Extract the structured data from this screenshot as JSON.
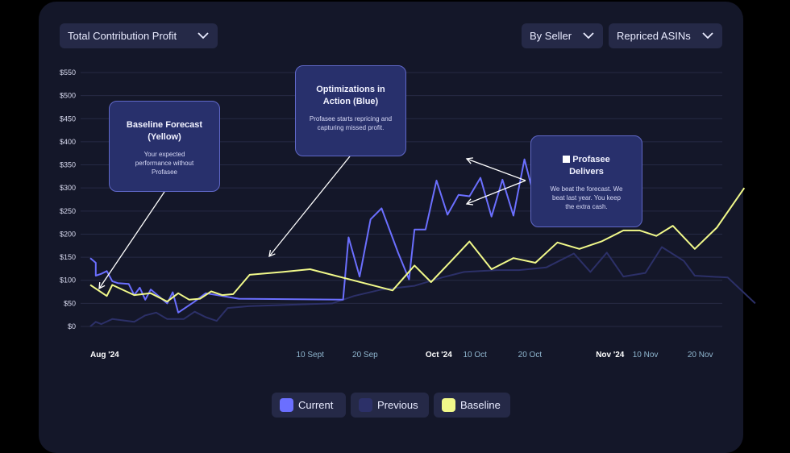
{
  "controls": {
    "metric_dropdown": "Total Contribution Profit",
    "group_dropdown": "By Seller",
    "filter_dropdown": "Repriced ASINs"
  },
  "legend": {
    "current": "Current",
    "previous": "Previous",
    "baseline": "Baseline"
  },
  "callouts": {
    "baseline": {
      "title": "Baseline Forecast (Yellow)",
      "body": "Your expected performance without Profasee"
    },
    "optimizations": {
      "title": "Optimizations in Action (Blue)",
      "body": "Profasee starts repricing and capturing missed profit."
    },
    "delivers": {
      "title": "Profasee Delivers",
      "body": "We beat the forecast. We beat last year. You keep the extra cash."
    }
  },
  "colors": {
    "current": "#6b6fff",
    "previous": "#2c3068",
    "baseline": "#f1f98a",
    "card": "#141729",
    "button": "#252947",
    "grid": "#262a44"
  },
  "chart_data": {
    "type": "line",
    "ylim": [
      0,
      550
    ],
    "y_ticks": [
      "$0",
      "$50",
      "$100",
      "$150",
      "$200",
      "$250",
      "$300",
      "$350",
      "$400",
      "$450",
      "$500",
      "$550"
    ],
    "x_range": [
      "2024-08-01",
      "2024-11-24"
    ],
    "x_ticks": [
      {
        "date": "2024-08-01",
        "label": "Aug '24",
        "bold": true
      },
      {
        "date": "2024-09-10",
        "label": "10 Sept",
        "bold": false
      },
      {
        "date": "2024-09-20",
        "label": "20 Sep",
        "bold": false
      },
      {
        "date": "2024-10-01",
        "label": "Oct '24",
        "bold": true
      },
      {
        "date": "2024-10-10",
        "label": "10 Oct",
        "bold": false
      },
      {
        "date": "2024-10-20",
        "label": "20 Oct",
        "bold": false
      },
      {
        "date": "2024-11-01",
        "label": "Nov '24",
        "bold": true
      },
      {
        "date": "2024-11-10",
        "label": "10 Nov",
        "bold": false
      },
      {
        "date": "2024-11-20",
        "label": "20 Nov",
        "bold": false
      }
    ],
    "grid": true,
    "series": [
      {
        "name": "Current",
        "points": [
          [
            "2024-08-01",
            148
          ],
          [
            "2024-08-02",
            138
          ],
          [
            "2024-08-02",
            110
          ],
          [
            "2024-08-03",
            114
          ],
          [
            "2024-08-04",
            120
          ],
          [
            "2024-08-05",
            98
          ],
          [
            "2024-08-06",
            94
          ],
          [
            "2024-08-08",
            92
          ],
          [
            "2024-08-09",
            68
          ],
          [
            "2024-08-10",
            84
          ],
          [
            "2024-08-11",
            58
          ],
          [
            "2024-08-12",
            80
          ],
          [
            "2024-08-13",
            70
          ],
          [
            "2024-08-15",
            50
          ],
          [
            "2024-08-16",
            74
          ],
          [
            "2024-08-17",
            30
          ],
          [
            "2024-08-20",
            54
          ],
          [
            "2024-08-22",
            72
          ],
          [
            "2024-08-25",
            66
          ],
          [
            "2024-08-28",
            60
          ],
          [
            "2024-09-16",
            58
          ],
          [
            "2024-09-17",
            193
          ],
          [
            "2024-09-19",
            108
          ],
          [
            "2024-09-21",
            232
          ],
          [
            "2024-09-23",
            256
          ],
          [
            "2024-09-26",
            160
          ],
          [
            "2024-09-28",
            102
          ],
          [
            "2024-09-29",
            210
          ],
          [
            "2024-10-01",
            210
          ],
          [
            "2024-10-03",
            316
          ],
          [
            "2024-10-05",
            242
          ],
          [
            "2024-10-07",
            285
          ],
          [
            "2024-10-09",
            282
          ],
          [
            "2024-10-11",
            322
          ],
          [
            "2024-10-13",
            238
          ],
          [
            "2024-10-15",
            318
          ],
          [
            "2024-10-17",
            240
          ],
          [
            "2024-10-19",
            362
          ],
          [
            "2024-10-21",
            270
          ],
          [
            "2024-10-23",
            326
          ]
        ]
      },
      {
        "name": "Previous",
        "points": [
          [
            "2024-08-01",
            0
          ],
          [
            "2024-08-02",
            10
          ],
          [
            "2024-08-03",
            5
          ],
          [
            "2024-08-05",
            16
          ],
          [
            "2024-08-09",
            10
          ],
          [
            "2024-08-11",
            24
          ],
          [
            "2024-08-13",
            30
          ],
          [
            "2024-08-15",
            16
          ],
          [
            "2024-08-18",
            16
          ],
          [
            "2024-08-20",
            32
          ],
          [
            "2024-08-22",
            20
          ],
          [
            "2024-08-24",
            12
          ],
          [
            "2024-08-26",
            40
          ],
          [
            "2024-08-30",
            44
          ],
          [
            "2024-09-14",
            50
          ],
          [
            "2024-09-18",
            66
          ],
          [
            "2024-09-23",
            80
          ],
          [
            "2024-09-29",
            88
          ],
          [
            "2024-10-04",
            106
          ],
          [
            "2024-10-08",
            118
          ],
          [
            "2024-10-14",
            122
          ],
          [
            "2024-10-18",
            122
          ],
          [
            "2024-10-23",
            128
          ],
          [
            "2024-10-28",
            158
          ],
          [
            "2024-10-31",
            118
          ],
          [
            "2024-11-03",
            160
          ],
          [
            "2024-11-06",
            108
          ],
          [
            "2024-11-10",
            116
          ],
          [
            "2024-11-13",
            172
          ],
          [
            "2024-11-17",
            142
          ],
          [
            "2024-11-19",
            110
          ],
          [
            "2024-11-25",
            106
          ],
          [
            "2024-11-30",
            50
          ]
        ]
      },
      {
        "name": "Baseline",
        "points": [
          [
            "2024-08-01",
            90
          ],
          [
            "2024-08-04",
            66
          ],
          [
            "2024-08-05",
            90
          ],
          [
            "2024-08-09",
            68
          ],
          [
            "2024-08-12",
            72
          ],
          [
            "2024-08-15",
            54
          ],
          [
            "2024-08-17",
            72
          ],
          [
            "2024-08-19",
            58
          ],
          [
            "2024-08-21",
            60
          ],
          [
            "2024-08-23",
            76
          ],
          [
            "2024-08-25",
            68
          ],
          [
            "2024-08-27",
            70
          ],
          [
            "2024-08-30",
            112
          ],
          [
            "2024-09-05",
            118
          ],
          [
            "2024-09-10",
            124
          ],
          [
            "2024-09-25",
            78
          ],
          [
            "2024-09-29",
            132
          ],
          [
            "2024-10-02",
            96
          ],
          [
            "2024-10-06",
            146
          ],
          [
            "2024-10-09",
            184
          ],
          [
            "2024-10-13",
            124
          ],
          [
            "2024-10-17",
            148
          ],
          [
            "2024-10-21",
            138
          ],
          [
            "2024-10-25",
            182
          ],
          [
            "2024-10-29",
            168
          ],
          [
            "2024-11-02",
            184
          ],
          [
            "2024-11-06",
            208
          ],
          [
            "2024-11-09",
            208
          ],
          [
            "2024-11-12",
            196
          ],
          [
            "2024-11-15",
            218
          ],
          [
            "2024-11-19",
            168
          ],
          [
            "2024-11-23",
            214
          ],
          [
            "2024-11-28",
            300
          ]
        ]
      }
    ]
  }
}
